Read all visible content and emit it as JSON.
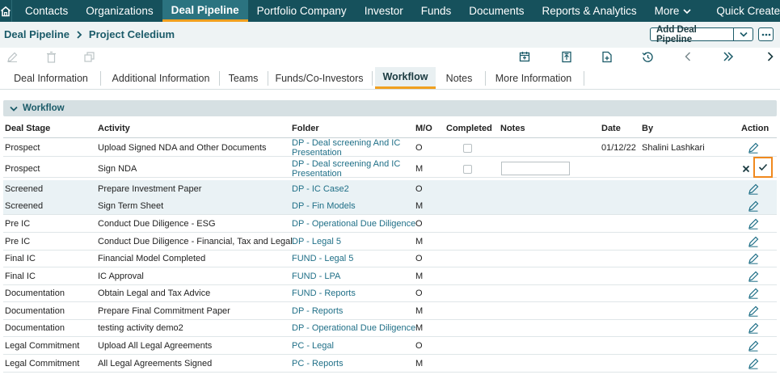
{
  "nav": {
    "items": [
      {
        "label": "Contacts",
        "left": 0
      },
      {
        "label": "Organizations",
        "left": 0
      },
      {
        "label": "Deal Pipeline",
        "active": true
      },
      {
        "label": "Portfolio Company"
      },
      {
        "label": "Investor"
      },
      {
        "label": "Funds"
      },
      {
        "label": "Documents"
      },
      {
        "label": "Reports & Analytics"
      },
      {
        "label": "More",
        "dropdown": true
      },
      {
        "label": "Quick Create",
        "dropdown": true
      }
    ]
  },
  "breadcrumb": {
    "root": "Deal Pipeline",
    "current": "Project Celedium"
  },
  "header": {
    "add_button": "Add Deal Pipeline"
  },
  "tabs": [
    {
      "label": "Deal Information"
    },
    {
      "label": "Additional Information"
    },
    {
      "label": "Teams"
    },
    {
      "label": "Funds/Co-Investors"
    },
    {
      "label": "Workflow",
      "active": true
    },
    {
      "label": "Notes"
    },
    {
      "label": "More Information"
    }
  ],
  "section": {
    "title": "Workflow"
  },
  "table": {
    "headers": {
      "stage": "Deal Stage",
      "activity": "Activity",
      "folder": "Folder",
      "mo": "M/O",
      "completed": "Completed",
      "notes": "Notes",
      "date": "Date",
      "by": "By",
      "action": "Action"
    },
    "rows": [
      {
        "stage": "Prospect",
        "activity": "Upload Signed NDA and Other Documents",
        "folder1": "DP - Deal screening And IC",
        "folder2": "Presentation",
        "mo": "O",
        "checkbox": true,
        "date": "01/12/22",
        "by": "Shalini Lashkari"
      },
      {
        "stage": "Prospect",
        "activity": "Sign NDA",
        "folder1": "DP - Deal screening And IC",
        "folder2": "Presentation",
        "mo": "M",
        "checkbox": true,
        "editing": true
      },
      {
        "stage": "Screened",
        "activity": "Prepare Investment Paper",
        "folder1": "DP - IC Case2",
        "mo": "O",
        "sel": true
      },
      {
        "stage": "Screened",
        "activity": "Sign Term Sheet",
        "folder1": "DP - Fin Models",
        "mo": "M",
        "sel": true
      },
      {
        "stage": "Pre IC",
        "activity": "Conduct Due Diligence - ESG",
        "folder1": "DP - Operational Due Diligence",
        "mo": "O"
      },
      {
        "stage": "Pre IC",
        "activity": "Conduct Due Diligence - Financial, Tax and Legal",
        "folder1": "DP - Legal 5",
        "mo": "M"
      },
      {
        "stage": "Final IC",
        "activity": "Financial Model Completed",
        "folder1": "FUND - Legal 5",
        "mo": "O"
      },
      {
        "stage": "Final IC",
        "activity": "IC Approval",
        "folder1": "FUND - LPA",
        "mo": "M"
      },
      {
        "stage": "Documentation",
        "activity": "Obtain Legal and Tax Advice",
        "folder1": "FUND - Reports",
        "mo": "O"
      },
      {
        "stage": "Documentation",
        "activity": "Prepare Final Commitment Paper",
        "folder1": "DP - Reports",
        "mo": "M"
      },
      {
        "stage": "Documentation",
        "activity": "testing activity demo2",
        "folder1": "DP - Operational Due Diligence",
        "mo": "M"
      },
      {
        "stage": "Legal Commitment",
        "activity": "Upload All Legal Agreements",
        "folder1": "PC - Legal",
        "mo": "O"
      },
      {
        "stage": "Legal Commitment",
        "activity": "All Legal Agreements Signed",
        "folder1": "PC - Reports",
        "mo": "M"
      }
    ]
  }
}
